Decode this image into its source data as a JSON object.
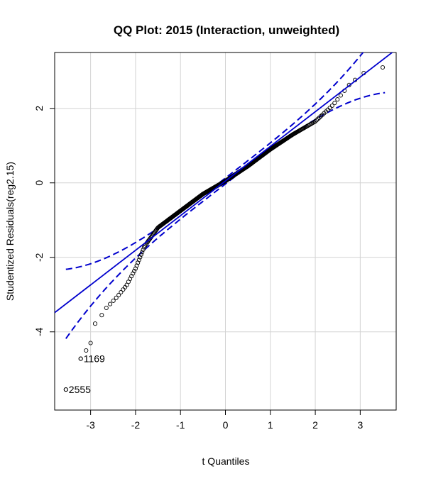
{
  "chart_data": {
    "type": "scatter",
    "title": "QQ Plot: 2015 (Interaction, unweighted)",
    "xlabel": "t Quantiles",
    "ylabel": "Studentized Residuals(reg2.15)",
    "xlim": [
      -3.8,
      3.8
    ],
    "ylim": [
      -6.1,
      3.5
    ],
    "xticks": [
      -3,
      -2,
      -1,
      0,
      1,
      2,
      3
    ],
    "yticks": [
      2,
      0,
      -2,
      -4
    ],
    "grid": true,
    "point_style": "open-circle",
    "points": {
      "x_range": [
        -3.55,
        3.55
      ],
      "count": 500,
      "sample_points": [
        [
          -3.55,
          -5.55
        ],
        [
          -3.22,
          -4.72
        ],
        [
          -3.1,
          -4.5
        ],
        [
          -3.0,
          -4.3
        ],
        [
          -2.9,
          -3.78
        ],
        [
          -2.82,
          -3.7
        ],
        [
          -2.75,
          -3.55
        ],
        [
          -2.6,
          -3.32
        ],
        [
          -2.4,
          -3.05
        ],
        [
          -2.2,
          -2.75
        ],
        [
          -2.0,
          -2.3
        ],
        [
          -1.8,
          -1.7
        ],
        [
          -1.5,
          -1.2
        ],
        [
          -1.0,
          -0.75
        ],
        [
          -0.5,
          -0.3
        ],
        [
          0.0,
          0.05
        ],
        [
          0.5,
          0.45
        ],
        [
          1.0,
          0.9
        ],
        [
          1.5,
          1.3
        ],
        [
          2.0,
          1.65
        ],
        [
          2.4,
          2.1
        ],
        [
          2.8,
          2.7
        ],
        [
          3.0,
          2.85
        ],
        [
          3.2,
          3.1
        ],
        [
          3.5,
          3.1
        ]
      ]
    },
    "reference_line": {
      "color": "#0000cd",
      "style": "solid",
      "intercept": 0.05,
      "slope": 0.93
    },
    "confidence_band": {
      "color": "#0000cd",
      "style": "dashed"
    },
    "labeled_points": [
      {
        "label": "1169",
        "x": -3.22,
        "y": -4.72
      },
      {
        "label": "2555",
        "x": -3.55,
        "y": -5.55
      }
    ]
  }
}
